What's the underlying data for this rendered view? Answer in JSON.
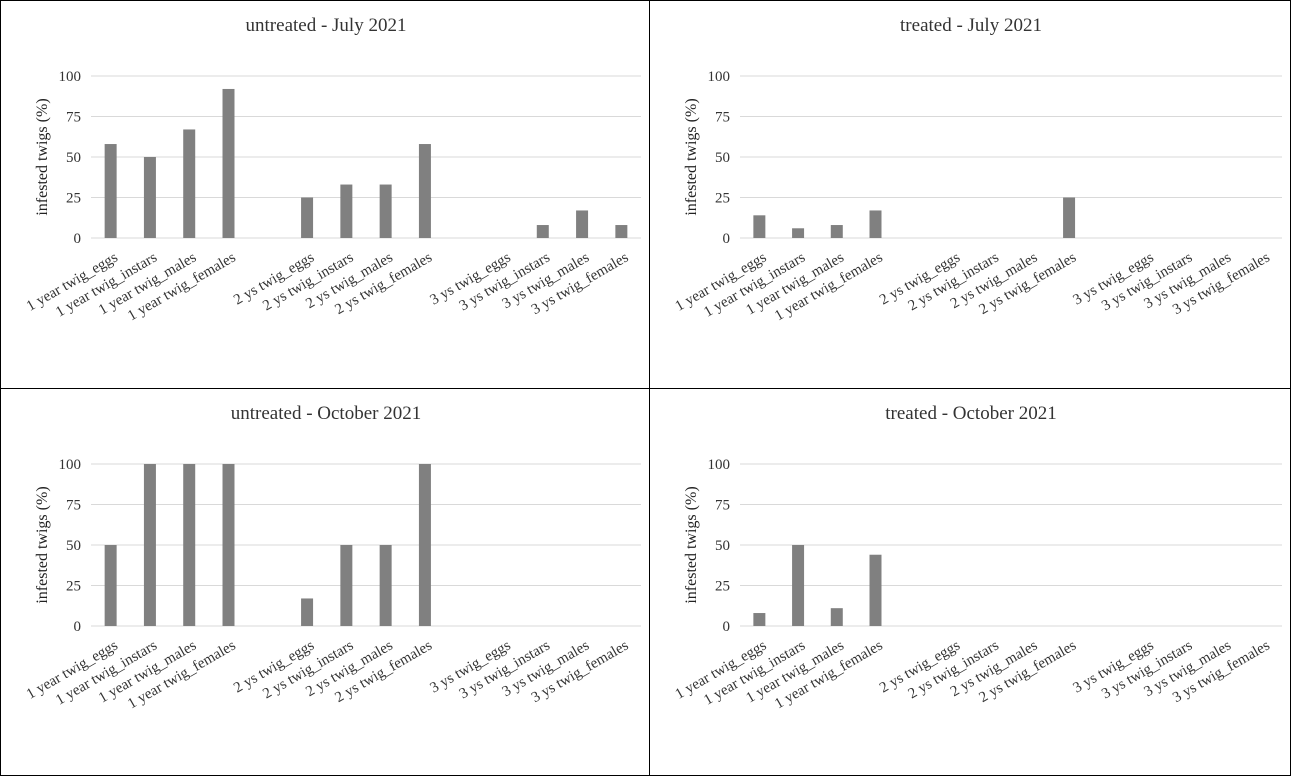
{
  "chart_data": [
    {
      "type": "bar",
      "title": "untreated - July 2021",
      "ylabel": "infested twigs (%)",
      "xlabel": "",
      "ylim": [
        0,
        100
      ],
      "yticks": [
        0,
        25,
        50,
        75,
        100
      ],
      "grid": true,
      "bar_color": "#808080",
      "categories": [
        "1 year twig_eggs",
        "1 year twig_instars",
        "1 year twig_males",
        "1 year twig_females",
        "",
        "2 ys twig_eggs",
        "2 ys twig_instars",
        "2 ys twig_males",
        "2 ys twig_females",
        "",
        "3 ys twig_eggs",
        "3 ys twig_instars",
        "3 ys twig_males",
        "3 ys twig_females"
      ],
      "values": [
        58,
        50,
        67,
        92,
        null,
        25,
        33,
        33,
        58,
        null,
        0,
        8,
        17,
        8
      ]
    },
    {
      "type": "bar",
      "title": "treated - July 2021",
      "ylabel": "infested twigs (%)",
      "xlabel": "",
      "ylim": [
        0,
        100
      ],
      "yticks": [
        0,
        25,
        50,
        75,
        100
      ],
      "grid": true,
      "bar_color": "#808080",
      "categories": [
        "1 year twig_eggs",
        "1 year twig_instars",
        "1 year twig_males",
        "1 year twig_females",
        "",
        "2 ys twig_eggs",
        "2 ys twig_instars",
        "2 ys twig_males",
        "2 ys twig_females",
        "",
        "3 ys twig_eggs",
        "3 ys twig_instars",
        "3 ys twig_males",
        "3 ys twig_females"
      ],
      "values": [
        14,
        6,
        8,
        17,
        null,
        0,
        0,
        0,
        25,
        null,
        0,
        0,
        0,
        0
      ]
    },
    {
      "type": "bar",
      "title": "untreated - October 2021",
      "ylabel": "infested twigs (%)",
      "xlabel": "",
      "ylim": [
        0,
        100
      ],
      "yticks": [
        0,
        25,
        50,
        75,
        100
      ],
      "grid": true,
      "bar_color": "#808080",
      "categories": [
        "1 year twig_eggs",
        "1 year twig_instars",
        "1 year twig_males",
        "1 year twig_females",
        "",
        "2 ys twig_eggs",
        "2 ys twig_instars",
        "2 ys twig_males",
        "2 ys twig_females",
        "",
        "3 ys twig_eggs",
        "3 ys twig_instars",
        "3 ys twig_males",
        "3 ys twig_females"
      ],
      "values": [
        50,
        100,
        100,
        100,
        null,
        17,
        50,
        50,
        100,
        null,
        0,
        0,
        0,
        0
      ]
    },
    {
      "type": "bar",
      "title": "treated - October 2021",
      "ylabel": "infested twigs (%)",
      "xlabel": "",
      "ylim": [
        0,
        100
      ],
      "yticks": [
        0,
        25,
        50,
        75,
        100
      ],
      "grid": true,
      "bar_color": "#808080",
      "categories": [
        "1 year twig_eggs",
        "1 year twig_instars",
        "1 year twig_males",
        "1 year twig_females",
        "",
        "2 ys twig_eggs",
        "2 ys twig_instars",
        "2 ys twig_males",
        "2 ys twig_females",
        "",
        "3 ys twig_eggs",
        "3 ys twig_instars",
        "3 ys twig_males",
        "3 ys twig_females"
      ],
      "values": [
        8,
        50,
        11,
        44,
        null,
        0,
        0,
        0,
        0,
        null,
        0,
        0,
        0,
        0
      ]
    }
  ]
}
